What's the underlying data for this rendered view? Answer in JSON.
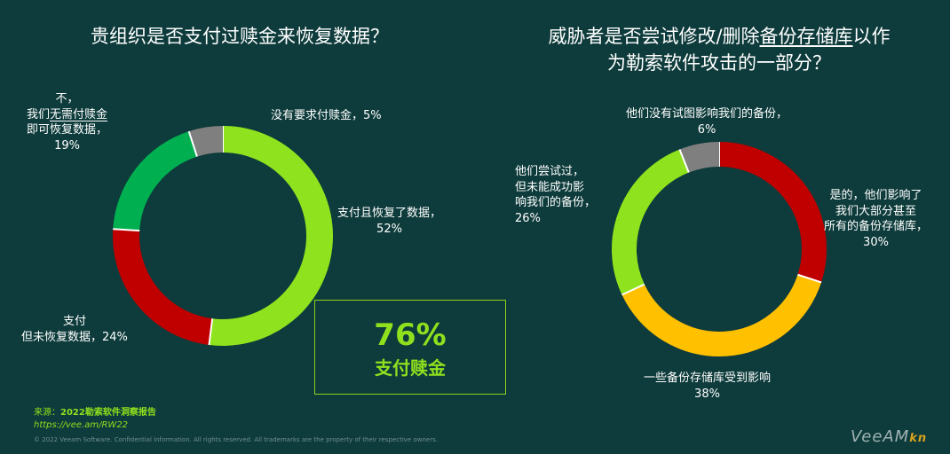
{
  "chart_data": [
    {
      "type": "pie",
      "donut": true,
      "title_parts": [
        "贵组织是否支付过赎金来恢复数据？"
      ],
      "colors": {
        "paid_recovered": "#8fe31e",
        "paid_not_recovered": "#c00000",
        "no_need": "#00b050",
        "not_asked": "#7f7f7f"
      },
      "slices": [
        {
          "key": "paid_recovered",
          "lines": [
            "支付且恢复了数据，",
            "52%"
          ],
          "value": 52
        },
        {
          "key": "paid_not_recovered",
          "lines": [
            "支付",
            "但未恢复数据，24%"
          ],
          "value": 24
        },
        {
          "key": "no_need",
          "lines": [
            "不，",
            "我们无需付赎金",
            "即可恢复数据，",
            "19%"
          ],
          "value": 19
        },
        {
          "key": "not_asked",
          "lines": [
            "没有要求付赎金，5%"
          ],
          "value": 5
        }
      ]
    },
    {
      "type": "pie",
      "donut": true,
      "title_parts": [
        "威胁者是否尝试修改/删除",
        "备份存储库",
        "以作",
        "为勒索软件攻击的一部分？"
      ],
      "colors": {
        "most_all": "#c00000",
        "some": "#ffc000",
        "tried_failed": "#8fe31e",
        "no_attempt": "#7f7f7f"
      },
      "slices": [
        {
          "key": "most_all",
          "lines": [
            "是的，他们影响了",
            "我们大部分甚至",
            "所有的备份存储库，",
            "30%"
          ],
          "value": 30
        },
        {
          "key": "some",
          "lines": [
            "一些备份存储库受到影响",
            "38%"
          ],
          "value": 38
        },
        {
          "key": "tried_failed",
          "lines": [
            "他们尝试过，",
            "但未能成功影",
            "响我们的备份，",
            "26%"
          ],
          "value": 26
        },
        {
          "key": "no_attempt",
          "lines": [
            "他们没有试图影响我们的备份，",
            "6%"
          ],
          "value": 6
        }
      ]
    }
  ],
  "callout": {
    "value": "76%",
    "label": "支付赎金"
  },
  "source": {
    "prefix": "来源：",
    "title": "2022勒索软件洞察报告",
    "url": "https://vee.am/RW22"
  },
  "footer": "© 2022 Veeam Software. Confidential information. All rights reserved. All trademarks are the property of their respective owners.",
  "logo": {
    "text": "VeeAM",
    "mark": "kn"
  }
}
